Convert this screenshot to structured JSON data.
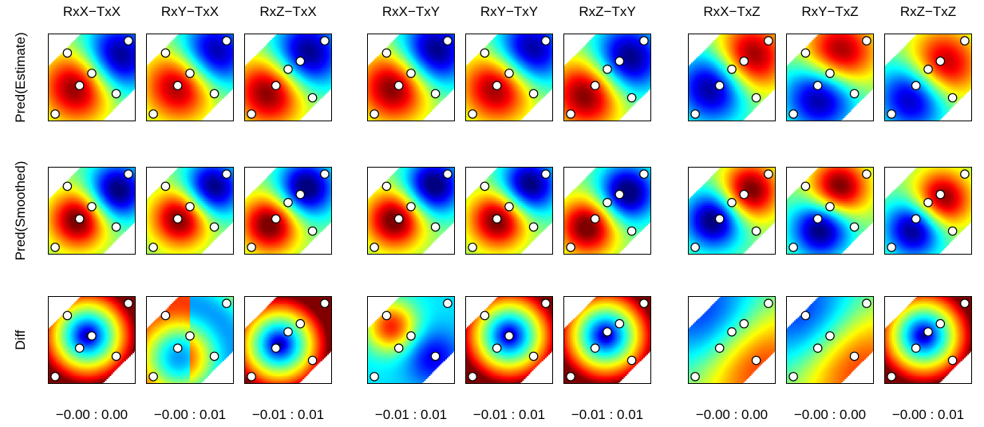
{
  "chart_data": {
    "type": "heatmap",
    "colormap": "jet",
    "row_labels": [
      "Pred(Estimate)",
      "Pred(Smoothed)",
      "Diff"
    ],
    "column_titles": [
      "RxX−TxX",
      "RxY−TxX",
      "RxZ−TxX",
      "RxX−TxY",
      "RxY−TxY",
      "RxZ−TxY",
      "RxX−TxZ",
      "RxY−TxZ",
      "RxZ−TxZ"
    ],
    "diff_color_ranges": [
      "−0.00 : 0.00",
      "−0.00 : 0.01",
      "−0.01 : 0.01",
      "−0.01 : 0.01",
      "−0.01 : 0.01",
      "−0.01 : 0.01",
      "−0.00 : 0.00",
      "−0.00 : 0.00",
      "−0.00 : 0.01"
    ],
    "sample_points": [
      {
        "x": 0.2,
        "y": 0.8
      },
      {
        "x": 0.95,
        "y": 0.95
      },
      {
        "x": 0.5,
        "y": 0.55
      },
      {
        "x": 0.35,
        "y": 0.4
      },
      {
        "x": 0.8,
        "y": 0.3
      },
      {
        "x": 0.05,
        "y": 0.05
      }
    ],
    "sample_points_by_column": [
      [
        {
          "x": 0.2,
          "y": 0.8
        },
        {
          "x": 0.95,
          "y": 0.95
        },
        {
          "x": 0.5,
          "y": 0.55
        },
        {
          "x": 0.35,
          "y": 0.4
        },
        {
          "x": 0.8,
          "y": 0.3
        },
        {
          "x": 0.05,
          "y": 0.05
        }
      ],
      [
        {
          "x": 0.2,
          "y": 0.8
        },
        {
          "x": 0.95,
          "y": 0.95
        },
        {
          "x": 0.5,
          "y": 0.55
        },
        {
          "x": 0.35,
          "y": 0.4
        },
        {
          "x": 0.8,
          "y": 0.3
        },
        {
          "x": 0.05,
          "y": 0.05
        }
      ],
      [
        {
          "x": 0.05,
          "y": 0.05
        },
        {
          "x": 0.95,
          "y": 0.95
        },
        {
          "x": 0.65,
          "y": 0.7
        },
        {
          "x": 0.5,
          "y": 0.6
        },
        {
          "x": 0.35,
          "y": 0.4
        },
        {
          "x": 0.8,
          "y": 0.25
        }
      ],
      [
        {
          "x": 0.2,
          "y": 0.8
        },
        {
          "x": 0.95,
          "y": 0.95
        },
        {
          "x": 0.5,
          "y": 0.55
        },
        {
          "x": 0.35,
          "y": 0.4
        },
        {
          "x": 0.8,
          "y": 0.3
        },
        {
          "x": 0.05,
          "y": 0.05
        }
      ],
      [
        {
          "x": 0.2,
          "y": 0.8
        },
        {
          "x": 0.95,
          "y": 0.95
        },
        {
          "x": 0.5,
          "y": 0.55
        },
        {
          "x": 0.35,
          "y": 0.4
        },
        {
          "x": 0.8,
          "y": 0.3
        },
        {
          "x": 0.05,
          "y": 0.05
        }
      ],
      [
        {
          "x": 0.05,
          "y": 0.05
        },
        {
          "x": 0.95,
          "y": 0.95
        },
        {
          "x": 0.65,
          "y": 0.7
        },
        {
          "x": 0.5,
          "y": 0.6
        },
        {
          "x": 0.35,
          "y": 0.4
        },
        {
          "x": 0.8,
          "y": 0.25
        }
      ],
      [
        {
          "x": 0.05,
          "y": 0.05
        },
        {
          "x": 0.95,
          "y": 0.95
        },
        {
          "x": 0.65,
          "y": 0.7
        },
        {
          "x": 0.5,
          "y": 0.6
        },
        {
          "x": 0.35,
          "y": 0.4
        },
        {
          "x": 0.8,
          "y": 0.25
        }
      ],
      [
        {
          "x": 0.2,
          "y": 0.8
        },
        {
          "x": 0.95,
          "y": 0.95
        },
        {
          "x": 0.5,
          "y": 0.55
        },
        {
          "x": 0.35,
          "y": 0.4
        },
        {
          "x": 0.8,
          "y": 0.3
        },
        {
          "x": 0.05,
          "y": 0.05
        }
      ],
      [
        {
          "x": 0.05,
          "y": 0.05
        },
        {
          "x": 0.95,
          "y": 0.95
        },
        {
          "x": 0.65,
          "y": 0.7
        },
        {
          "x": 0.5,
          "y": 0.6
        },
        {
          "x": 0.35,
          "y": 0.4
        },
        {
          "x": 0.8,
          "y": 0.25
        }
      ]
    ]
  }
}
